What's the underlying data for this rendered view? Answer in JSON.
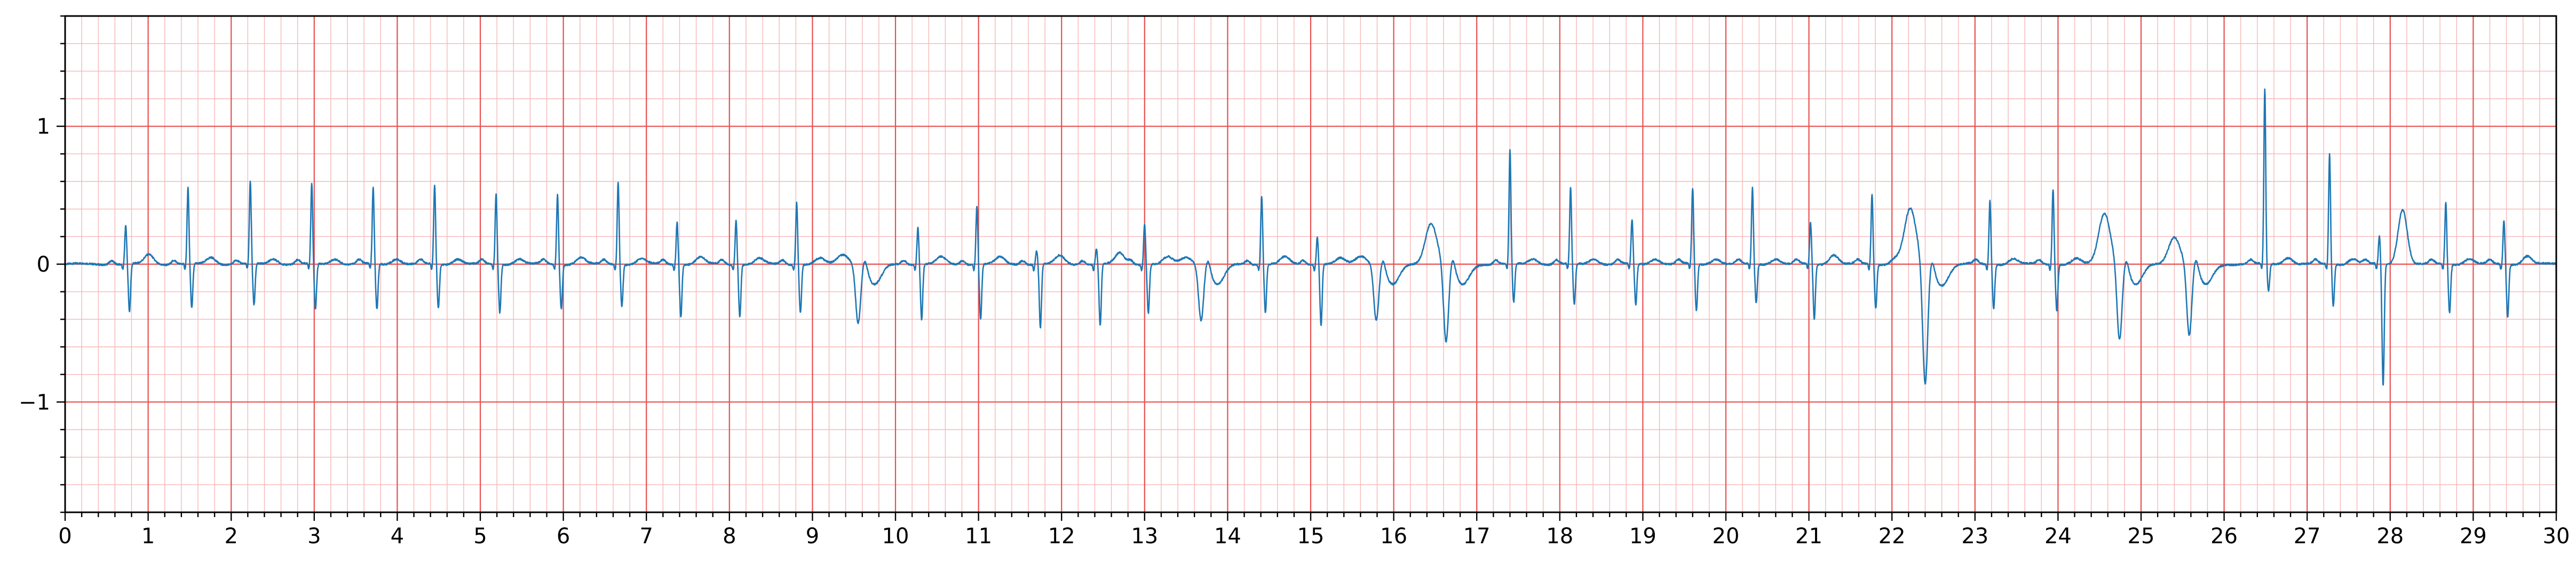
{
  "chart_data": {
    "type": "line",
    "title": "",
    "xlabel": "",
    "ylabel": "",
    "xlim": [
      0,
      30
    ],
    "ylim": [
      -1.8,
      1.8
    ],
    "x_ticks": [
      0,
      1,
      2,
      3,
      4,
      5,
      6,
      7,
      8,
      9,
      10,
      11,
      12,
      13,
      14,
      15,
      16,
      17,
      18,
      19,
      20,
      21,
      22,
      23,
      24,
      25,
      26,
      27,
      28,
      29,
      30
    ],
    "x_tick_labels": [
      "0",
      "1",
      "2",
      "3",
      "4",
      "5",
      "6",
      "7",
      "8",
      "9",
      "10",
      "11",
      "12",
      "13",
      "14",
      "15",
      "16",
      "17",
      "18",
      "19",
      "20",
      "21",
      "22",
      "23",
      "24",
      "25",
      "26",
      "27",
      "28",
      "29",
      "30"
    ],
    "y_ticks": [
      -1,
      0,
      1
    ],
    "y_tick_labels": [
      "−1",
      "0",
      "1"
    ],
    "x_minor_step": 0.2,
    "y_minor_step": 0.2,
    "grid": true,
    "colors": {
      "major_grid": "#e85050",
      "minor_grid": "#f7b7b7",
      "trace": "#1f77b4"
    },
    "series": [
      {
        "beats": [
          {
            "t": 0.73,
            "r": 0.28,
            "s": -0.35,
            "tw": 0.07
          },
          {
            "t": 1.48,
            "r": 0.55,
            "s": -0.32,
            "tw": 0.05
          },
          {
            "t": 2.23,
            "r": 0.6,
            "s": -0.3,
            "tw": 0.04
          },
          {
            "t": 2.97,
            "r": 0.58,
            "s": -0.33,
            "tw": 0.04
          },
          {
            "t": 3.71,
            "r": 0.55,
            "s": -0.33,
            "tw": 0.04
          },
          {
            "t": 4.45,
            "r": 0.57,
            "s": -0.32,
            "tw": 0.04
          },
          {
            "t": 5.19,
            "r": 0.51,
            "s": -0.35,
            "tw": 0.04
          },
          {
            "t": 5.93,
            "r": 0.51,
            "s": -0.32,
            "tw": 0.05
          },
          {
            "t": 6.66,
            "r": 0.6,
            "s": -0.3,
            "tw": 0.04
          },
          {
            "t": 7.37,
            "r": 0.31,
            "s": -0.38,
            "tw": 0.05
          },
          {
            "t": 8.08,
            "r": 0.32,
            "s": -0.38,
            "tw": 0.04
          },
          {
            "t": 8.81,
            "r": 0.45,
            "s": -0.35,
            "tw": 0.04
          },
          {
            "t": 9.55,
            "r": 0.0,
            "s": -0.42,
            "tw": 0.07
          },
          {
            "t": 10.27,
            "r": 0.27,
            "s": -0.4,
            "tw": 0.05
          },
          {
            "t": 10.98,
            "r": 0.42,
            "s": -0.4,
            "tw": 0.05
          },
          {
            "t": 11.7,
            "r": 0.1,
            "s": -0.46,
            "tw": 0.06
          },
          {
            "t": 12.42,
            "r": 0.11,
            "s": -0.45,
            "tw": 0.08
          },
          {
            "t": 13.0,
            "r": 0.3,
            "s": -0.35,
            "tw": 0.05
          },
          {
            "t": 13.68,
            "r": 0.0,
            "s": -0.4,
            "tw": 0.05
          },
          {
            "t": 14.41,
            "r": 0.5,
            "s": -0.35,
            "tw": 0.05
          },
          {
            "t": 15.08,
            "r": 0.2,
            "s": -0.44,
            "tw": 0.04
          },
          {
            "t": 15.79,
            "r": 0.0,
            "s": -0.4,
            "tw": 0.06
          },
          {
            "t": 16.63,
            "r": 0.0,
            "s": -0.57,
            "tw": 0.3
          },
          {
            "t": 17.4,
            "r": 0.82,
            "s": -0.28,
            "tw": 0.04
          },
          {
            "t": 18.13,
            "r": 0.55,
            "s": -0.3,
            "tw": 0.04
          },
          {
            "t": 18.87,
            "r": 0.32,
            "s": -0.3,
            "tw": 0.04
          },
          {
            "t": 19.6,
            "r": 0.55,
            "s": -0.34,
            "tw": 0.04
          },
          {
            "t": 20.32,
            "r": 0.55,
            "s": -0.28,
            "tw": 0.04
          },
          {
            "t": 21.02,
            "r": 0.3,
            "s": -0.4,
            "tw": 0.07
          },
          {
            "t": 21.76,
            "r": 0.51,
            "s": -0.32,
            "tw": 0.04
          },
          {
            "t": 22.4,
            "r": 0.0,
            "s": -0.88,
            "tw": 0.4
          },
          {
            "t": 23.18,
            "r": 0.46,
            "s": -0.32,
            "tw": 0.04
          },
          {
            "t": 23.94,
            "r": 0.55,
            "s": -0.33,
            "tw": 0.04
          },
          {
            "t": 24.74,
            "r": 0.0,
            "s": -0.55,
            "tw": 0.37
          },
          {
            "t": 25.58,
            "r": 0.0,
            "s": -0.52,
            "tw": 0.2
          },
          {
            "t": 26.49,
            "r": 1.27,
            "s": -0.2,
            "tw": 0.05
          },
          {
            "t": 27.27,
            "r": 0.8,
            "s": -0.3,
            "tw": 0.04
          },
          {
            "t": 27.87,
            "r": 0.2,
            "s": -0.88,
            "tw": 0.4
          },
          {
            "t": 28.67,
            "r": 0.45,
            "s": -0.35,
            "tw": 0.04
          },
          {
            "t": 29.37,
            "r": 0.32,
            "s": -0.38,
            "tw": 0.06
          }
        ]
      }
    ]
  }
}
